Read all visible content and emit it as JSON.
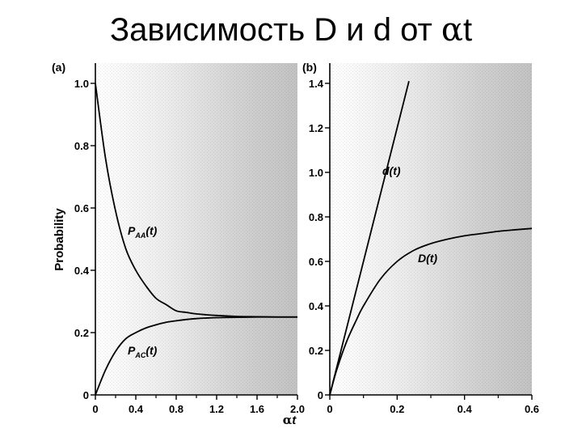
{
  "slide": {
    "title_text": "Зависимость D и d от ",
    "title_symbol": "α",
    "title_var": "t"
  },
  "chart_data": [
    {
      "panel_label": "(a)",
      "type": "line",
      "ylabel": "Probability",
      "xlabel": "αt",
      "xlim": [
        0,
        2.0
      ],
      "ylim": [
        0,
        1.0
      ],
      "xticks": [
        "0",
        "0.4",
        "0.8",
        "1.2",
        "1.6",
        "2.0"
      ],
      "yticks": [
        "0",
        "0.2",
        "0.4",
        "0.6",
        "0.8",
        "1.0"
      ],
      "background": "gradient grey (darker to the right)",
      "series": [
        {
          "name": "P_AA(t)",
          "label_main": "P",
          "label_sub": "AA",
          "label_tail": "(t)",
          "x": [
            0,
            0.1,
            0.2,
            0.3,
            0.4,
            0.5,
            0.6,
            0.7,
            0.8,
            0.9,
            1.0,
            1.2,
            1.4,
            1.6,
            1.8,
            2.0
          ],
          "y": [
            1.0,
            0.76,
            0.59,
            0.47,
            0.4,
            0.35,
            0.31,
            0.29,
            0.27,
            0.265,
            0.26,
            0.255,
            0.252,
            0.251,
            0.25,
            0.25
          ]
        },
        {
          "name": "P_AC(t)",
          "label_main": "P",
          "label_sub": "AC",
          "label_tail": "(t)",
          "x": [
            0,
            0.1,
            0.2,
            0.3,
            0.4,
            0.5,
            0.6,
            0.7,
            0.8,
            0.9,
            1.0,
            1.2,
            1.4,
            1.6,
            1.8,
            2.0
          ],
          "y": [
            0.0,
            0.08,
            0.14,
            0.18,
            0.2,
            0.215,
            0.225,
            0.233,
            0.238,
            0.242,
            0.245,
            0.248,
            0.249,
            0.25,
            0.25,
            0.25
          ]
        }
      ]
    },
    {
      "panel_label": "(b)",
      "type": "line",
      "xlim": [
        0,
        0.6
      ],
      "ylim": [
        0,
        1.4
      ],
      "xticks": [
        "0",
        "0.2",
        "0.4",
        "0.6"
      ],
      "yticks": [
        "0",
        "0.2",
        "0.4",
        "0.6",
        "0.8",
        "1.0",
        "1.2",
        "1.4"
      ],
      "background": "gradient grey (darker to the right)",
      "series": [
        {
          "name": "d(t)",
          "label_main": "d(t)",
          "x": [
            0,
            0.1,
            0.2,
            0.235
          ],
          "y": [
            0,
            0.6,
            1.2,
            1.41
          ]
        },
        {
          "name": "D(t)",
          "label_main": "D(t)",
          "x": [
            0,
            0.02,
            0.05,
            0.08,
            0.1,
            0.15,
            0.2,
            0.25,
            0.3,
            0.35,
            0.4,
            0.45,
            0.5,
            0.55,
            0.6
          ],
          "y": [
            0,
            0.11,
            0.24,
            0.34,
            0.4,
            0.52,
            0.6,
            0.65,
            0.68,
            0.7,
            0.715,
            0.725,
            0.735,
            0.742,
            0.748
          ]
        }
      ]
    }
  ]
}
